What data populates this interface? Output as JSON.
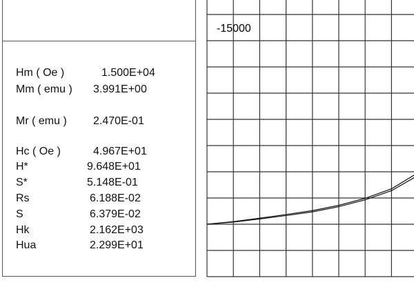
{
  "parameters": [
    {
      "label": "Hm ( Oe )",
      "value": "1.500E+04"
    },
    {
      "label": "Mm ( emu )",
      "value": "3.991E+00"
    },
    {
      "label": "Mr ( emu )",
      "value": "2.470E-01"
    },
    {
      "label": "Hc ( Oe )",
      "value": "4.967E+01"
    },
    {
      "label": "H*",
      "value": "9.648E+01"
    },
    {
      "label": "S*",
      "value": "5.148E-01"
    },
    {
      "label": "Rs",
      "value": "6.188E-02"
    },
    {
      "label": "S",
      "value": "6.379E-02"
    },
    {
      "label": "Hk",
      "value": "2.162E+03"
    },
    {
      "label": "Hua",
      "value": "2.299E+01"
    }
  ],
  "chart_data": {
    "type": "line",
    "grid": true,
    "tick_labels": [
      "-15000"
    ],
    "line_color": "#111111",
    "grid_color": "#333333",
    "series": [
      {
        "x": [
          0,
          1,
          2,
          3,
          4,
          5,
          6,
          7,
          7.9
        ],
        "y": [
          2.0,
          2.08,
          2.2,
          2.33,
          2.47,
          2.67,
          2.93,
          3.28,
          3.8
        ]
      },
      {
        "x": [
          0,
          1,
          2,
          3,
          4,
          5,
          6,
          7,
          7.9
        ],
        "y": [
          2.0,
          2.1,
          2.23,
          2.37,
          2.52,
          2.72,
          2.99,
          3.35,
          3.9
        ]
      }
    ]
  }
}
